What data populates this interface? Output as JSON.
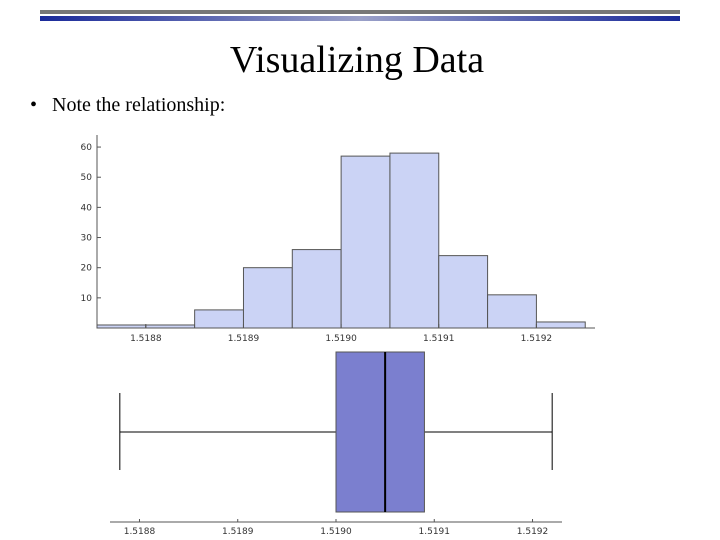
{
  "title": "Visualizing Data",
  "bullet": "Note the relationship:",
  "chart_data": [
    {
      "type": "histogram",
      "bins": [
        1.51875,
        1.5188,
        1.51885,
        1.5189,
        1.51895,
        1.519,
        1.51905,
        1.5191,
        1.51915,
        1.5192,
        1.51925
      ],
      "values": [
        1,
        1,
        6,
        20,
        26,
        57,
        58,
        24,
        11,
        2
      ],
      "color": "#cbd3f5",
      "xlim": [
        1.51875,
        1.51926
      ],
      "xticks": [
        1.5188,
        1.5189,
        {
          "value": 1.519,
          "label": "1.5190"
        },
        1.5191,
        1.5192
      ],
      "ylim": [
        0,
        64
      ],
      "yticks": [
        10,
        20,
        30,
        40,
        50,
        60
      ]
    },
    {
      "type": "box",
      "min": 1.51878,
      "q1": 1.519,
      "median": 1.51905,
      "q3": 1.51909,
      "max": 1.51922,
      "color": "#7b7fcf",
      "xlim": [
        1.51877,
        1.51923
      ],
      "xticks": [
        1.5188,
        1.5189,
        {
          "value": 1.519,
          "label": "1.5190"
        },
        1.5191,
        1.5192
      ]
    }
  ]
}
